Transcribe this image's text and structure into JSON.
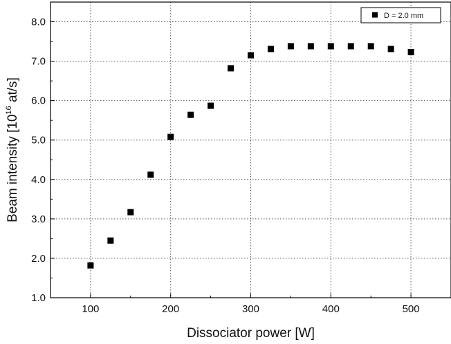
{
  "chart_data": {
    "type": "scatter",
    "title": "",
    "xlabel": "Dissociator power [W]",
    "ylabel": {
      "prefix": "Beam intensity [10",
      "superscript": "16",
      "suffix": " at/s]"
    },
    "xlim": [
      50,
      550
    ],
    "ylim": [
      1.0,
      8.5
    ],
    "x_ticks": [
      100,
      200,
      300,
      400,
      500
    ],
    "x_tick_labels": [
      "100",
      "200",
      "300",
      "400",
      "500"
    ],
    "y_ticks": [
      1.0,
      2.0,
      3.0,
      4.0,
      5.0,
      6.0,
      7.0,
      8.0
    ],
    "y_tick_labels": [
      "1.0",
      "2.0",
      "3.0",
      "4.0",
      "5.0",
      "6.0",
      "7.0",
      "8.0"
    ],
    "grid": true,
    "legend_position": "top-right",
    "series": [
      {
        "name": "D = 2.0 mm",
        "marker": "square",
        "color": "#000000",
        "x": [
          100,
          125,
          150,
          175,
          200,
          225,
          250,
          275,
          300,
          325,
          350,
          375,
          400,
          425,
          450,
          475,
          500
        ],
        "y": [
          1.82,
          2.45,
          3.17,
          4.12,
          5.08,
          5.64,
          5.87,
          6.82,
          7.15,
          7.31,
          7.38,
          7.38,
          7.38,
          7.38,
          7.38,
          7.31,
          7.23
        ]
      }
    ]
  }
}
